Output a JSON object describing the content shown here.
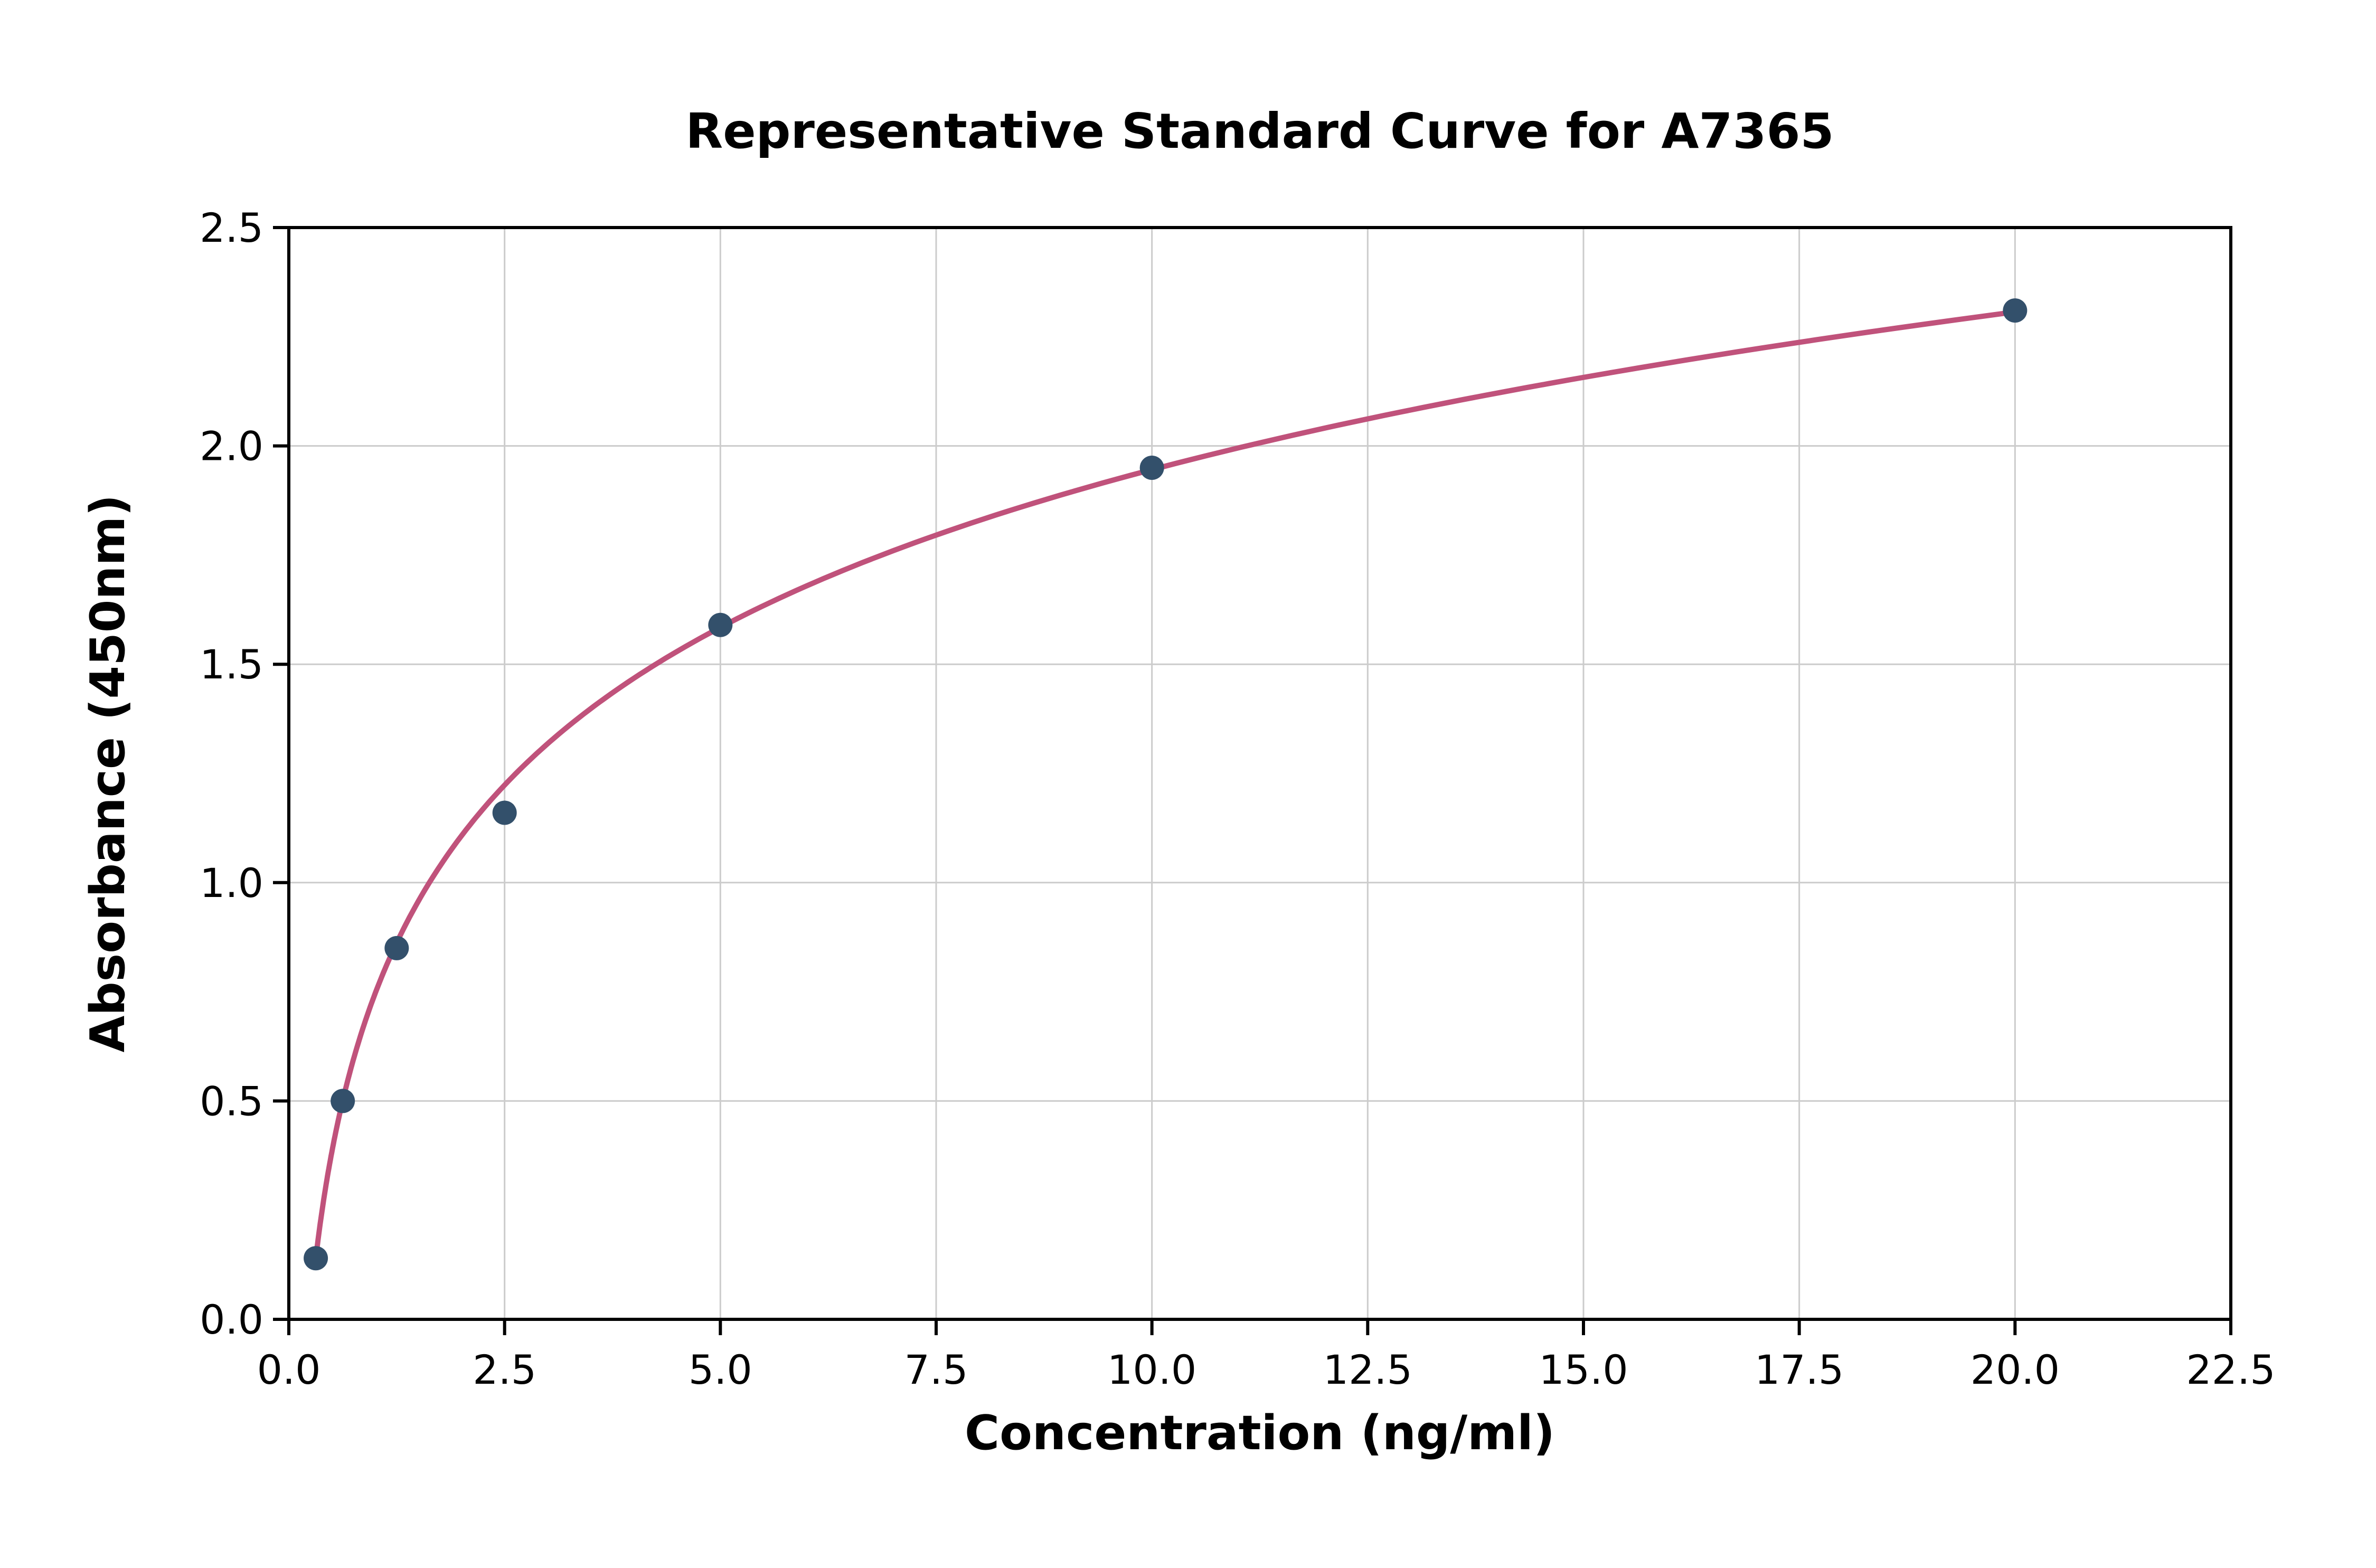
{
  "chart_data": {
    "type": "scatter",
    "title": "Representative Standard Curve for A7365",
    "xlabel": "Concentration (ng/ml)",
    "ylabel": "Absorbance (450nm)",
    "xlim": [
      0,
      22.5
    ],
    "ylim": [
      0,
      2.5
    ],
    "xticks": [
      0,
      2.5,
      5,
      7.5,
      10,
      12.5,
      15,
      17.5,
      20,
      22.5
    ],
    "yticks": [
      0,
      0.5,
      1,
      1.5,
      2,
      2.5
    ],
    "grid": true,
    "legend_position": "none",
    "points": [
      {
        "x": 0.3125,
        "y": 0.14
      },
      {
        "x": 0.625,
        "y": 0.5
      },
      {
        "x": 1.25,
        "y": 0.85
      },
      {
        "x": 2.5,
        "y": 1.16
      },
      {
        "x": 5,
        "y": 1.59
      },
      {
        "x": 10,
        "y": 1.95
      },
      {
        "x": 20,
        "y": 2.31
      }
    ],
    "fit_curve": {
      "type": "logarithmic",
      "slope": 0.521,
      "intercept": 0.746,
      "x_start": 0.3,
      "x_end": 20
    },
    "colors": {
      "points": "#33506b",
      "curve": "#c0527b",
      "grid": "#cccccc",
      "axis": "#000000",
      "background": "#ffffff"
    }
  }
}
